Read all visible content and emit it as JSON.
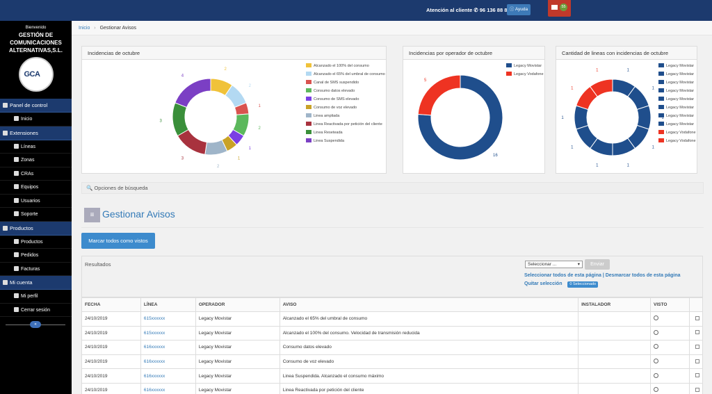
{
  "topbar": {
    "contact_label": "Atención al cliente",
    "contact_phone": "96 136 88 88",
    "help_label": "Ayuda",
    "mail_count": "55",
    "colors": {
      "bar": "#1c3a6e",
      "mail": "#c0392b"
    }
  },
  "sidebar": {
    "welcome": "Bienvenido",
    "company": "GESTIÓN DE COMUNICACIONES ALTERNATIVAS,S.L.",
    "logo_text": "GCA",
    "sections": [
      {
        "label": "Panel de control",
        "items": [
          "Inicio"
        ]
      },
      {
        "label": "Extensiones",
        "items": [
          "Líneas",
          "Zonas",
          "CRAs",
          "Equipos",
          "Usuarios",
          "Soporte"
        ]
      },
      {
        "label": "Productos",
        "items": [
          "Productos",
          "Pedidos",
          "Facturas"
        ]
      },
      {
        "label": "Mi cuenta",
        "items": [
          "Mi perfil",
          "Cerrar sesión"
        ]
      }
    ],
    "collapse_label": "«"
  },
  "breadcrumb": {
    "home": "Inicio",
    "separator": "›",
    "current": "Gestionar Avisos"
  },
  "panels": {
    "p1": {
      "title": "Incidencias de octubre"
    },
    "p2": {
      "title": "Incidencias por operador de octubre"
    },
    "p3": {
      "title": "Cantidad de lineas con incidencias de octubre"
    }
  },
  "chart_data": [
    {
      "type": "pie",
      "title": "Incidencias de octubre",
      "donut": true,
      "labels": [
        "Alcanzado el 100% del consumo",
        "Alcanzado el 65% del umbral de consumo",
        "Canal de SMS suspendido",
        "Consumo datos elevado",
        "Consumo de SMS elevado",
        "Consumo de voz elevado",
        "Linea ampliada",
        "Linea Reactivada por petición del cliente",
        "Linea Reseteada",
        "Linea Suspendida"
      ],
      "values": [
        2,
        2,
        1,
        2,
        1,
        1,
        2,
        3,
        3,
        4
      ],
      "colors": [
        "#f0c23a",
        "#b3d9f2",
        "#d9534f",
        "#5cb85c",
        "#7b3fe4",
        "#c9a227",
        "#9fb5c9",
        "#a8323e",
        "#3a8f3a",
        "#7b3fc4"
      ]
    },
    {
      "type": "pie",
      "title": "Incidencias por operador de octubre",
      "donut": true,
      "labels": [
        "Legacy Movistar",
        "Legacy Vodafone"
      ],
      "values": [
        16,
        5
      ],
      "colors": [
        "#1f4e8c",
        "#ee3322"
      ]
    },
    {
      "type": "pie",
      "title": "Cantidad de lineas con incidencias de octubre",
      "donut": true,
      "labels": [
        "Legacy Movistar",
        "Legacy Movistar",
        "Legacy Movistar",
        "Legacy Movistar",
        "Legacy Movistar",
        "Legacy Movistar",
        "Legacy Movistar",
        "Legacy Movistar",
        "Legacy Vodafone",
        "Legacy Vodafone"
      ],
      "values": [
        1,
        1,
        1,
        1,
        1,
        1,
        1,
        1,
        1,
        1
      ],
      "colors": [
        "#1f4e8c",
        "#1f4e8c",
        "#1f4e8c",
        "#1f4e8c",
        "#1f4e8c",
        "#1f4e8c",
        "#1f4e8c",
        "#1f4e8c",
        "#ee3322",
        "#ee3322"
      ]
    }
  ],
  "search": {
    "label": "Opciones de búsqueda"
  },
  "page_title": "Gestionar Avisos",
  "mark_all_label": "Marcar todos como vistos",
  "results": {
    "label": "Resultados",
    "select_placeholder": "Seleccionar ...",
    "send_label": "Enviar",
    "select_all_label": "Seleccionar todos de esta página",
    "deselect_all_label": "Desmarcar todos de esta página",
    "clear_label": "Quitar selección",
    "selected_count": "0 Seleccionado"
  },
  "table": {
    "headers": [
      "FECHA",
      "LÍNEA",
      "OPERADOR",
      "AVISO",
      "INSTALADOR",
      "VISTO"
    ],
    "rows": [
      [
        "24/10/2019",
        "615xxxxxx",
        "Legacy Movistar",
        "Alcanzado el 65% del umbral de consumo",
        "",
        ""
      ],
      [
        "24/10/2019",
        "615xxxxxx",
        "Legacy Movistar",
        "Alcanzado el 100% del consumo. Velocidad de transmisión reducida",
        "",
        ""
      ],
      [
        "24/10/2019",
        "616xxxxxx",
        "Legacy Movistar",
        "Consumo datos elevado",
        "",
        ""
      ],
      [
        "24/10/2019",
        "616xxxxxx",
        "Legacy Movistar",
        "Consumo de voz elevado",
        "",
        ""
      ],
      [
        "24/10/2019",
        "616xxxxxx",
        "Legacy Movistar",
        "Linea Suspendida. Alcanzado el consumo máximo",
        "",
        ""
      ],
      [
        "24/10/2019",
        "616xxxxxx",
        "Legacy Movistar",
        "Linea Reactivada por petición del cliente",
        "",
        ""
      ]
    ]
  }
}
